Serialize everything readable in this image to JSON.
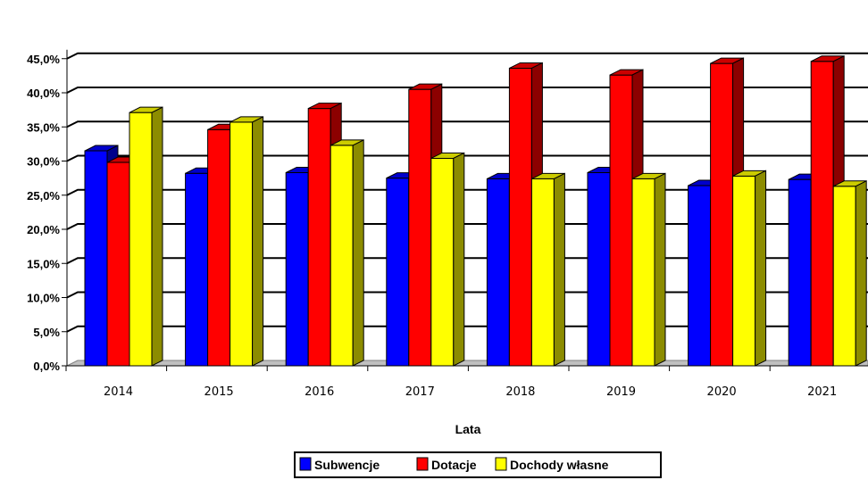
{
  "chart_data": {
    "type": "bar",
    "categories": [
      "2014",
      "2015",
      "2016",
      "2017",
      "2018",
      "2019",
      "2020",
      "2021"
    ],
    "series": [
      {
        "name": "Subwencje",
        "color": "#0000ff",
        "values": [
          31.5,
          28.2,
          28.3,
          27.5,
          27.4,
          28.3,
          26.4,
          27.3
        ]
      },
      {
        "name": "Dotacje",
        "color": "#ff0000",
        "values": [
          29.8,
          34.6,
          37.7,
          40.5,
          43.6,
          42.6,
          44.3,
          44.6
        ]
      },
      {
        "name": "Dochody własne",
        "color": "#ffff00",
        "values": [
          37.1,
          35.7,
          32.3,
          30.4,
          27.4,
          27.4,
          27.8,
          26.3
        ]
      }
    ],
    "ylim": [
      0,
      45
    ],
    "ytick_labels": [
      "0,0%",
      "5,0%",
      "10,0%",
      "15,0%",
      "20,0%",
      "25,0%",
      "30,0%",
      "35,0%",
      "40,0%",
      "45,0%"
    ],
    "xlabel": "Lata",
    "ylabel": "",
    "grid": true,
    "legend_position": "bottom"
  }
}
